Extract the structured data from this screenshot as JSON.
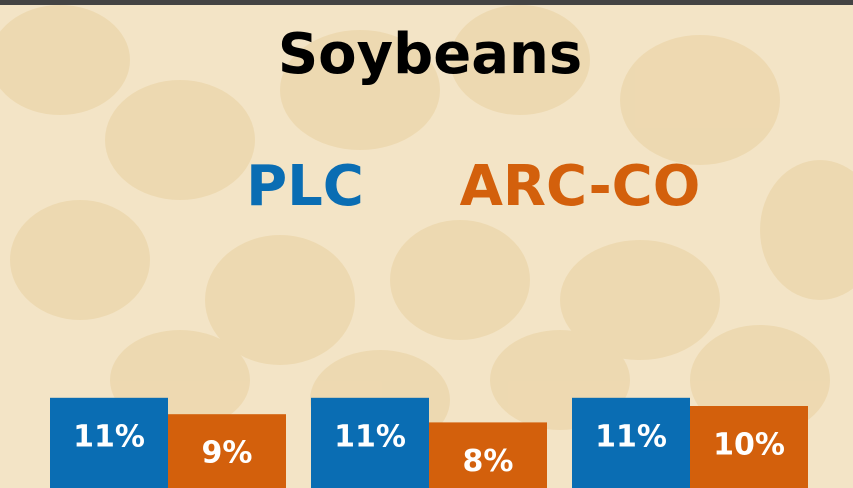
{
  "chart_data": {
    "type": "bar",
    "title": "Soybeans",
    "categories": [
      null,
      null,
      null
    ],
    "series": [
      {
        "name": "PLC",
        "color": "#0a6db3",
        "values": [
          11,
          11,
          11
        ],
        "value_labels": [
          "11%",
          "11%",
          "11%"
        ]
      },
      {
        "name": "ARC-CO",
        "color": "#d3600c",
        "values": [
          9,
          8,
          10
        ],
        "value_labels": [
          "9%",
          "8%",
          "10%"
        ]
      }
    ]
  }
}
